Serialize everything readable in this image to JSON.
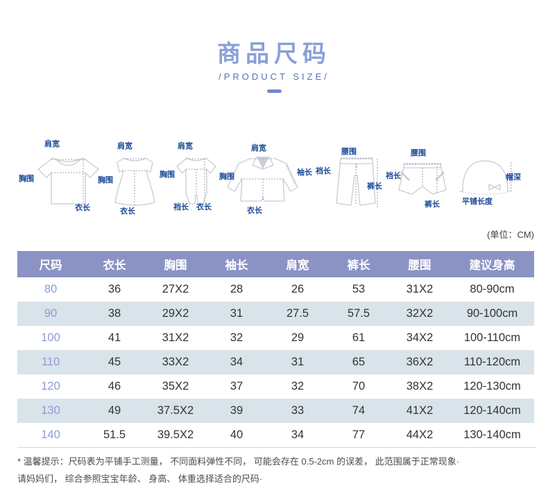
{
  "header": {
    "title": "商品尺码",
    "subtitle": "/PRODUCT SIZE/"
  },
  "unit_note": "(单位：CM)",
  "diagrams": [
    {
      "garment": "t-shirt",
      "labels": {
        "top": "肩宽",
        "left": "胸围",
        "bottom": "衣长"
      }
    },
    {
      "garment": "dress",
      "labels": {
        "top": "肩宽",
        "left": "胸围",
        "bottom": "衣长"
      }
    },
    {
      "garment": "romper",
      "labels": {
        "top": "肩宽",
        "left": "胸围",
        "bottom_left": "裆长",
        "bottom_right": "衣长"
      }
    },
    {
      "garment": "jacket",
      "labels": {
        "top": "肩宽",
        "left": "胸围",
        "right": "袖长",
        "bottom": "衣长"
      }
    },
    {
      "garment": "pants",
      "labels": {
        "top": "腰围",
        "left": "裆长",
        "right": "裤长"
      }
    },
    {
      "garment": "shorts",
      "labels": {
        "top": "腰围",
        "left": "裆长",
        "bottom": "裤长"
      }
    },
    {
      "garment": "hat",
      "labels": {
        "right": "帽深",
        "bottom": "平铺长度"
      }
    }
  ],
  "table": {
    "headers": [
      "尺码",
      "衣长",
      "胸围",
      "袖长",
      "肩宽",
      "裤长",
      "腰围",
      "建议身高"
    ],
    "rows": [
      [
        "80",
        "36",
        "27X2",
        "28",
        "26",
        "53",
        "31X2",
        "80-90cm"
      ],
      [
        "90",
        "38",
        "29X2",
        "31",
        "27.5",
        "57.5",
        "32X2",
        "90-100cm"
      ],
      [
        "100",
        "41",
        "31X2",
        "32",
        "29",
        "61",
        "34X2",
        "100-110cm"
      ],
      [
        "110",
        "45",
        "33X2",
        "34",
        "31",
        "65",
        "36X2",
        "110-120cm"
      ],
      [
        "120",
        "46",
        "35X2",
        "37",
        "32",
        "70",
        "38X2",
        "120-130cm"
      ],
      [
        "130",
        "49",
        "37.5X2",
        "39",
        "33",
        "74",
        "41X2",
        "120-140cm"
      ],
      [
        "140",
        "51.5",
        "39.5X2",
        "40",
        "34",
        "77",
        "44X2",
        "130-140cm"
      ]
    ]
  },
  "footer": {
    "line1": "* 温馨提示：尺码表为平铺手工测量， 不同面料弹性不同， 可能会存在 0.5-2cm 的误差， 此范围属于正常现象·",
    "line2": "请妈妈们， 综合参照宝宝年龄、 身高、 体重选择适合的尺码·"
  },
  "colors": {
    "title": "#8ba0d8",
    "subtitle": "#5d6db0",
    "table_header_bg": "#8b93c5",
    "row_alt_bg": "#d9e3ea",
    "size_text": "#8c9cd6",
    "diagram_label": "#1c4a96",
    "garment_outline": "#c7ccd5"
  }
}
